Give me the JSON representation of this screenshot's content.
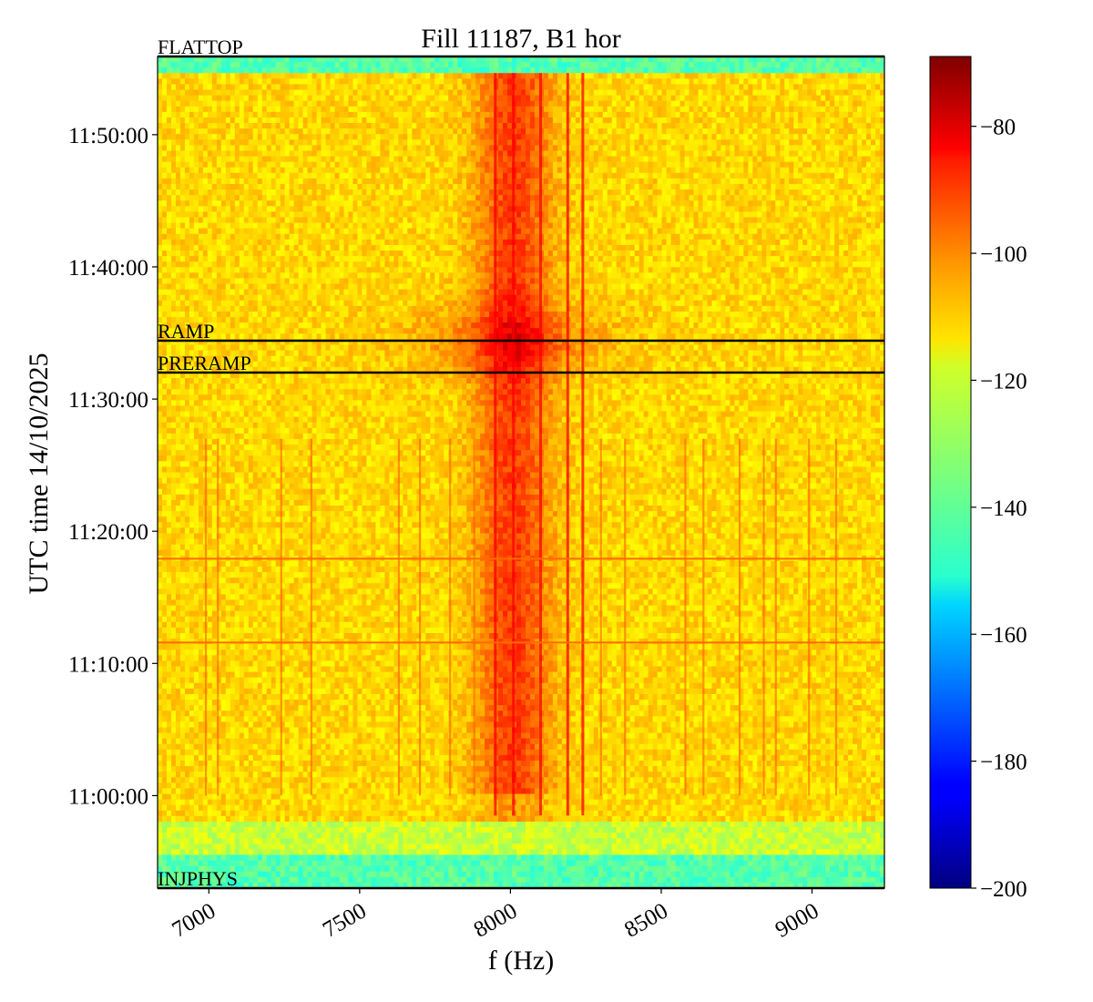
{
  "chart_data": {
    "type": "heatmap",
    "title": "Fill 11187, B1 hor",
    "xlabel": "f (Hz)",
    "ylabel": "UTC time 14/10/2025",
    "xlim": [
      6830,
      9240
    ],
    "ylim": [
      "10:53:00",
      "11:55:55"
    ],
    "x_ticks": [
      7000,
      7500,
      8000,
      8500,
      9000
    ],
    "x_tick_labels": [
      "7000",
      "7500",
      "8000",
      "8500",
      "9000"
    ],
    "y_ticks": [
      "11:00:00",
      "11:10:00",
      "11:20:00",
      "11:30:00",
      "11:40:00",
      "11:50:00"
    ],
    "colorbar": {
      "colormap": "jet",
      "vmin": -200,
      "vmax": -69,
      "ticks": [
        -200,
        -180,
        -160,
        -140,
        -120,
        -100,
        -80
      ],
      "tick_labels": [
        "−200",
        "−180",
        "−160",
        "−140",
        "−120",
        "−100",
        "−80"
      ]
    },
    "spectral_features": {
      "central_band_hz": [
        7960,
        8080
      ],
      "central_band_level_db": -92,
      "background_level_db": -113,
      "low_level_periods_db": -140,
      "strong_lines_hz": [
        7950,
        8010,
        8100,
        8190,
        8240
      ],
      "weak_lines_hz": [
        6990,
        7030,
        7240,
        7340,
        7630,
        7700,
        7800,
        7880,
        8300,
        8380,
        8580,
        8640,
        8760,
        8840,
        8880,
        8990,
        9080
      ]
    },
    "beam_modes": [
      {
        "label": "FLATTOP",
        "time": "11:55:55"
      },
      {
        "label": "RAMP",
        "time": "11:34:25"
      },
      {
        "label": "PRERAMP",
        "time": "11:32:00"
      },
      {
        "label": "INJPHYS",
        "time": "10:53:00"
      }
    ],
    "horizontal_lines": [
      "11:17:55",
      "11:11:35"
    ],
    "grid": false,
    "legend": "none"
  }
}
